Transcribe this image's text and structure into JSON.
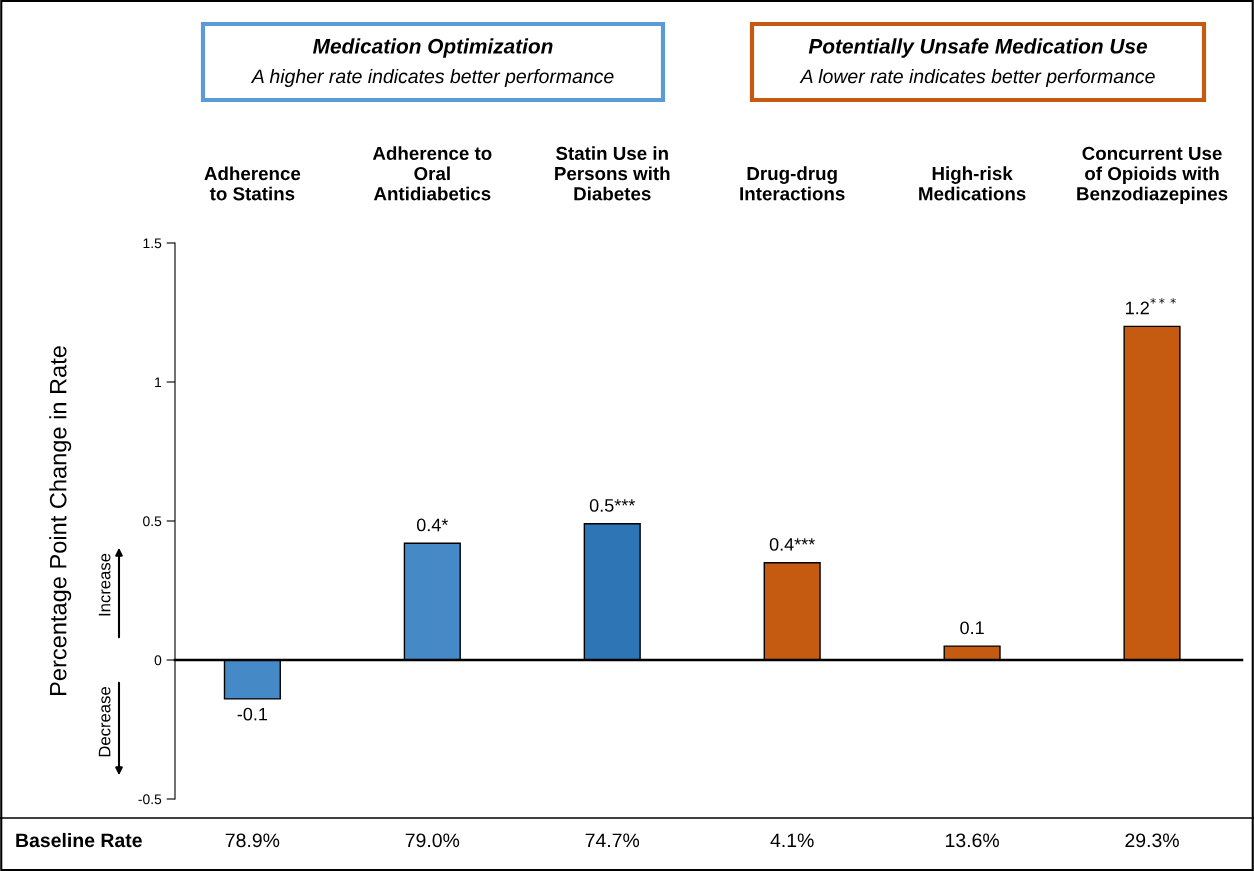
{
  "chart_data": {
    "type": "bar",
    "ylabel": "Percentage Point Change in Rate",
    "categories": [
      "Adherence\nto Statins",
      "Adherence to\nOral\nAntidiabetics",
      "Statin Use in\nPersons with\nDiabetes",
      "Drug-drug\nInteractions",
      "High-risk\nMedications",
      "Concurrent Use\nof Opioids with\nBenzodiazepines"
    ],
    "values": [
      -0.14,
      0.42,
      0.49,
      0.35,
      0.05,
      1.2
    ],
    "colors": [
      "#4589c6",
      "#4589c6",
      "#2e75b6",
      "#c55a11",
      "#c55a11",
      "#c55a11"
    ],
    "value_labels": [
      "-0.1",
      "0.4*",
      "0.5***",
      "0.4***",
      "0.1",
      "1.2$^{***}$"
    ],
    "ylim": [
      -0.5,
      1.5
    ],
    "yticks": [
      {
        "value": -0.5,
        "label": "-0.5"
      },
      0,
      0.5,
      1,
      1.5
    ],
    "legend": false,
    "annotations": [
      "Medication Optimization",
      "A higher rate indicates better performance",
      "Potentially Unsafe Medication Use",
      "A lower rate indicates better performance",
      "Increase",
      "Decrease",
      "Baseline Rate",
      "78.9%",
      "79.0%",
      "74.7%",
      "4.1%",
      "13.6%",
      "29.3%"
    ]
  }
}
